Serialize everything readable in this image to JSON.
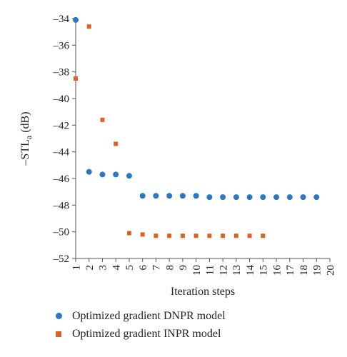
{
  "colors": {
    "dnpr": "#2f77bd",
    "inpr": "#d9622b",
    "axis": "#555555"
  },
  "chart_data": {
    "type": "scatter",
    "xlabel": "Iteration steps",
    "ylabel_main": "–STL",
    "ylabel_sub": "a",
    "ylabel_unit": " (dB)",
    "xlim": [
      1,
      20
    ],
    "ylim": [
      -52,
      -34
    ],
    "x_ticks": [
      1,
      2,
      3,
      4,
      5,
      6,
      7,
      8,
      9,
      10,
      11,
      12,
      13,
      14,
      15,
      16,
      17,
      18,
      19,
      20
    ],
    "y_ticks": [
      -34,
      -36,
      -38,
      -40,
      -42,
      -44,
      -46,
      -48,
      -50,
      -52
    ],
    "y_tick_labels": [
      "–34",
      "–36",
      "–38",
      "–40",
      "–42",
      "–44",
      "–46",
      "–48",
      "–50",
      "–52"
    ],
    "grid": false,
    "legend_position": "bottom",
    "series": [
      {
        "name": "Optimized gradient DNPR model",
        "marker": "circle",
        "x": [
          1,
          2,
          3,
          4,
          5,
          6,
          7,
          8,
          9,
          10,
          11,
          12,
          13,
          14,
          15,
          16,
          17,
          18,
          19
        ],
        "y": [
          -34.1,
          -45.5,
          -45.7,
          -45.7,
          -45.8,
          -47.3,
          -47.3,
          -47.3,
          -47.3,
          -47.3,
          -47.4,
          -47.4,
          -47.4,
          -47.4,
          -47.4,
          -47.4,
          -47.4,
          -47.4,
          -47.4
        ]
      },
      {
        "name": "Optimized gradient INPR model",
        "marker": "square",
        "x": [
          1,
          2,
          3,
          4,
          5,
          6,
          7,
          8,
          9,
          10,
          11,
          12,
          13,
          14,
          15
        ],
        "y": [
          -38.5,
          -34.6,
          -41.6,
          -43.4,
          -50.1,
          -50.2,
          -50.3,
          -50.3,
          -50.3,
          -50.3,
          -50.3,
          -50.3,
          -50.3,
          -50.3,
          -50.3
        ]
      }
    ]
  }
}
